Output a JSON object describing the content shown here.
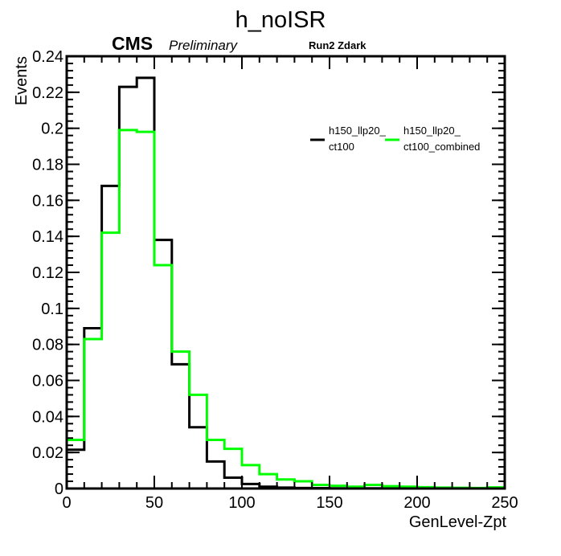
{
  "header": {
    "title": "h_noISR",
    "cms_label": "CMS",
    "preliminary_label": "Preliminary",
    "run_label": "Run2 Zdark"
  },
  "chart_data": {
    "type": "histogram",
    "xlabel": "GenLevel-Zpt",
    "ylabel": "Events",
    "xlim": [
      0,
      250
    ],
    "ylim": [
      0,
      0.24
    ],
    "x_ticks": [
      0,
      50,
      100,
      150,
      200,
      250
    ],
    "y_ticks": [
      "0",
      "0.02",
      "0.04",
      "0.06",
      "0.08",
      "0.1",
      "0.12",
      "0.14",
      "0.16",
      "0.18",
      "0.2",
      "0.22",
      "0.24"
    ],
    "grid": false,
    "legend_position": "top-right",
    "bin_edges": [
      0,
      10,
      20,
      30,
      40,
      50,
      60,
      70,
      80,
      90,
      100,
      110,
      120,
      130,
      140,
      150,
      160,
      170,
      180,
      190,
      200,
      210,
      220,
      230,
      240,
      250
    ],
    "series": [
      {
        "name_line1": "h150_llp20_",
        "name_line2": "ct100",
        "color": "#000000",
        "values": [
          0.0215,
          0.089,
          0.168,
          0.223,
          0.228,
          0.138,
          0.069,
          0.034,
          0.015,
          0.006,
          0.0025,
          0.001,
          0.0005,
          0.0003,
          0.0002,
          0.0001,
          0.0001,
          0.0001,
          0,
          0,
          0,
          0,
          0,
          0,
          0
        ]
      },
      {
        "name_line1": "h150_llp20_",
        "name_line2": "ct100_combined",
        "color": "#00ff00",
        "values": [
          0.027,
          0.083,
          0.142,
          0.199,
          0.198,
          0.124,
          0.076,
          0.052,
          0.027,
          0.022,
          0.013,
          0.008,
          0.005,
          0.004,
          0.002,
          0.0015,
          0.001,
          0.002,
          0.0013,
          0.001,
          0.0007,
          0.0005,
          0.0004,
          0.0003,
          0.0006
        ]
      }
    ]
  }
}
